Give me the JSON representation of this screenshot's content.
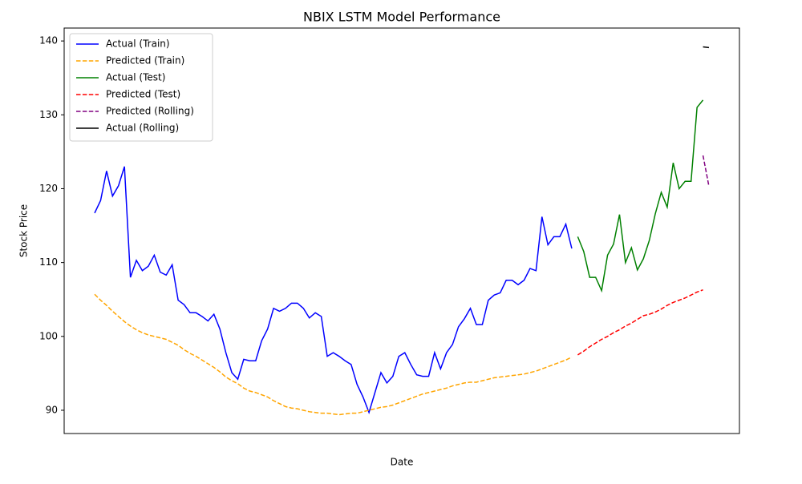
{
  "chart_data": {
    "type": "line",
    "title": "NBIX LSTM Model Performance",
    "x_label": "Date",
    "y_label": "Stock Price",
    "categories": [
      null,
      null,
      null,
      null,
      null,
      null,
      null,
      null,
      null,
      null,
      null,
      null,
      null,
      null,
      null,
      null,
      null,
      null,
      null,
      null,
      null,
      null,
      null,
      null,
      null,
      null,
      null,
      null,
      null,
      null,
      null,
      null,
      null,
      null,
      null,
      null,
      null,
      null,
      null,
      null,
      null,
      null,
      null,
      null,
      null,
      null,
      null,
      null,
      null,
      null,
      null,
      null,
      null,
      null,
      null,
      null,
      null,
      null,
      null,
      null,
      null,
      null,
      null,
      null,
      null,
      null,
      null,
      null,
      null,
      null,
      null,
      null,
      null,
      null,
      null,
      null,
      null,
      null,
      null,
      null,
      null,
      null,
      null,
      null,
      null,
      null,
      null,
      null,
      null,
      null,
      null,
      null,
      null,
      null,
      null,
      null,
      null,
      null,
      null,
      null,
      null,
      null,
      null,
      null
    ],
    "ylim": [
      86.85,
      141.75
    ],
    "yticks": [
      90,
      100,
      110,
      120,
      130,
      140
    ],
    "legend": "upper left",
    "series": [
      {
        "name": "Actual (Train)",
        "color": "#0000ff",
        "linestyle": "solid",
        "values": [
          116.7,
          118.4,
          122.4,
          119,
          120.4,
          123,
          108,
          110.3,
          108.9,
          109.5,
          111,
          108.7,
          108.3,
          109.7,
          104.9,
          104.3,
          103.2,
          103.2,
          102.7,
          102.1,
          103,
          101,
          97.8,
          95.1,
          94.2,
          96.9,
          96.7,
          96.7,
          99.4,
          101,
          103.8,
          103.4,
          103.8,
          104.5,
          104.5,
          103.8,
          102.5,
          103.2,
          102.7,
          97.3,
          97.8,
          97.3,
          96.7,
          96.2,
          93.5,
          91.8,
          89.7,
          92.4,
          95.1,
          93.7,
          94.6,
          97.3,
          97.8,
          96.2,
          94.8,
          94.6,
          94.6,
          97.8,
          95.6,
          97.8,
          98.9,
          101.3,
          102.4,
          103.8,
          101.6,
          101.6,
          104.9,
          105.6,
          105.9,
          107.6,
          107.6,
          107,
          107.6,
          109.2,
          108.9,
          116.2,
          112.4,
          113.5,
          113.5,
          115.2,
          111.9,
          null,
          null,
          null,
          null,
          null,
          null,
          null,
          null,
          null,
          null,
          null,
          null,
          null,
          null,
          null,
          null,
          null,
          null,
          null,
          null,
          null,
          null,
          null
        ]
      },
      {
        "name": "Predicted (Train)",
        "color": "#ffa500",
        "linestyle": "dashed",
        "values": [
          105.7,
          104.9,
          104.2,
          103.4,
          102.7,
          102.0,
          101.4,
          100.9,
          100.5,
          100.2,
          100.0,
          99.8,
          99.6,
          99.2,
          98.8,
          98.2,
          97.7,
          97.3,
          96.8,
          96.3,
          95.8,
          95.2,
          94.5,
          94.0,
          93.6,
          93.0,
          92.6,
          92.4,
          92.1,
          91.8,
          91.3,
          90.9,
          90.5,
          90.3,
          90.2,
          90.0,
          89.8,
          89.7,
          89.6,
          89.6,
          89.5,
          89.4,
          89.5,
          89.6,
          89.6,
          89.8,
          90.0,
          90.2,
          90.4,
          90.5,
          90.7,
          91.0,
          91.3,
          91.6,
          91.9,
          92.2,
          92.4,
          92.6,
          92.8,
          93.0,
          93.3,
          93.5,
          93.7,
          93.8,
          93.8,
          94.0,
          94.2,
          94.4,
          94.5,
          94.6,
          94.7,
          94.8,
          94.9,
          95.1,
          95.3,
          95.6,
          95.9,
          96.2,
          96.5,
          96.8,
          97.2,
          null,
          null,
          null,
          null,
          null,
          null,
          null,
          null,
          null,
          null,
          null,
          null,
          null,
          null,
          null,
          null,
          null,
          null,
          null,
          null,
          null,
          null,
          null
        ]
      },
      {
        "name": "Actual (Test)",
        "color": "#008000",
        "linestyle": "solid",
        "values": [
          null,
          null,
          null,
          null,
          null,
          null,
          null,
          null,
          null,
          null,
          null,
          null,
          null,
          null,
          null,
          null,
          null,
          null,
          null,
          null,
          null,
          null,
          null,
          null,
          null,
          null,
          null,
          null,
          null,
          null,
          null,
          null,
          null,
          null,
          null,
          null,
          null,
          null,
          null,
          null,
          null,
          null,
          null,
          null,
          null,
          null,
          null,
          null,
          null,
          null,
          null,
          null,
          null,
          null,
          null,
          null,
          null,
          null,
          null,
          null,
          null,
          null,
          null,
          null,
          null,
          null,
          null,
          null,
          null,
          null,
          null,
          null,
          null,
          null,
          null,
          null,
          null,
          null,
          null,
          null,
          null,
          113.5,
          111.5,
          108,
          108,
          106.2,
          111,
          112.5,
          116.5,
          110,
          112,
          109,
          110.5,
          113,
          116.6,
          119.5,
          117.5,
          123.5,
          120,
          121,
          121,
          131,
          132,
          null
        ]
      },
      {
        "name": "Predicted (Test)",
        "color": "#ff0000",
        "linestyle": "dashed",
        "values": [
          null,
          null,
          null,
          null,
          null,
          null,
          null,
          null,
          null,
          null,
          null,
          null,
          null,
          null,
          null,
          null,
          null,
          null,
          null,
          null,
          null,
          null,
          null,
          null,
          null,
          null,
          null,
          null,
          null,
          null,
          null,
          null,
          null,
          null,
          null,
          null,
          null,
          null,
          null,
          null,
          null,
          null,
          null,
          null,
          null,
          null,
          null,
          null,
          null,
          null,
          null,
          null,
          null,
          null,
          null,
          null,
          null,
          null,
          null,
          null,
          null,
          null,
          null,
          null,
          null,
          null,
          null,
          null,
          null,
          null,
          null,
          null,
          null,
          null,
          null,
          null,
          null,
          null,
          null,
          null,
          null,
          97.5,
          98.0,
          98.6,
          99.1,
          99.6,
          100.0,
          100.5,
          100.9,
          101.4,
          101.8,
          102.3,
          102.8,
          103.0,
          103.3,
          103.7,
          104.2,
          104.6,
          104.9,
          105.2,
          105.6,
          106.0,
          106.3,
          null
        ]
      },
      {
        "name": "Predicted (Rolling)",
        "color": "#800080",
        "linestyle": "dashed",
        "values": [
          null,
          null,
          null,
          null,
          null,
          null,
          null,
          null,
          null,
          null,
          null,
          null,
          null,
          null,
          null,
          null,
          null,
          null,
          null,
          null,
          null,
          null,
          null,
          null,
          null,
          null,
          null,
          null,
          null,
          null,
          null,
          null,
          null,
          null,
          null,
          null,
          null,
          null,
          null,
          null,
          null,
          null,
          null,
          null,
          null,
          null,
          null,
          null,
          null,
          null,
          null,
          null,
          null,
          null,
          null,
          null,
          null,
          null,
          null,
          null,
          null,
          null,
          null,
          null,
          null,
          null,
          null,
          null,
          null,
          null,
          null,
          null,
          null,
          null,
          null,
          null,
          null,
          null,
          null,
          null,
          null,
          null,
          null,
          null,
          null,
          null,
          null,
          null,
          null,
          null,
          null,
          null,
          null,
          null,
          null,
          null,
          null,
          null,
          null,
          null,
          null,
          null,
          124.5,
          120.3
        ]
      },
      {
        "name": "Actual (Rolling)",
        "color": "#000000",
        "linestyle": "solid",
        "values": [
          null,
          null,
          null,
          null,
          null,
          null,
          null,
          null,
          null,
          null,
          null,
          null,
          null,
          null,
          null,
          null,
          null,
          null,
          null,
          null,
          null,
          null,
          null,
          null,
          null,
          null,
          null,
          null,
          null,
          null,
          null,
          null,
          null,
          null,
          null,
          null,
          null,
          null,
          null,
          null,
          null,
          null,
          null,
          null,
          null,
          null,
          null,
          null,
          null,
          null,
          null,
          null,
          null,
          null,
          null,
          null,
          null,
          null,
          null,
          null,
          null,
          null,
          null,
          null,
          null,
          null,
          null,
          null,
          null,
          null,
          null,
          null,
          null,
          null,
          null,
          null,
          null,
          null,
          null,
          null,
          null,
          null,
          null,
          null,
          null,
          null,
          null,
          null,
          null,
          null,
          null,
          null,
          null,
          null,
          null,
          null,
          null,
          null,
          null,
          null,
          null,
          null,
          139.2,
          139.1
        ]
      }
    ]
  }
}
